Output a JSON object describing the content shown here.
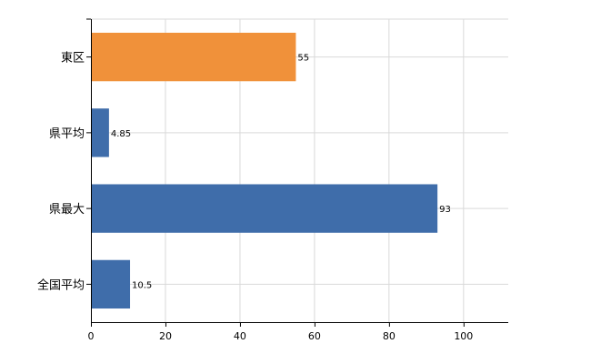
{
  "chart_data": {
    "type": "bar",
    "orientation": "horizontal",
    "categories": [
      "東区",
      "県平均",
      "県最大",
      "全国平均"
    ],
    "values": [
      55,
      4.85,
      93,
      10.5
    ],
    "data_labels": [
      "55",
      "4.85",
      "93",
      "10.5"
    ],
    "colors": [
      "#F0913A",
      "#3F6DAA",
      "#3F6DAA",
      "#3F6DAA"
    ],
    "xlim": [
      0,
      112
    ],
    "xticks": [
      0,
      20,
      40,
      60,
      80,
      100
    ],
    "xtick_labels": [
      "0",
      "20",
      "40",
      "60",
      "80",
      "100"
    ],
    "grid": true,
    "legend": "none"
  }
}
